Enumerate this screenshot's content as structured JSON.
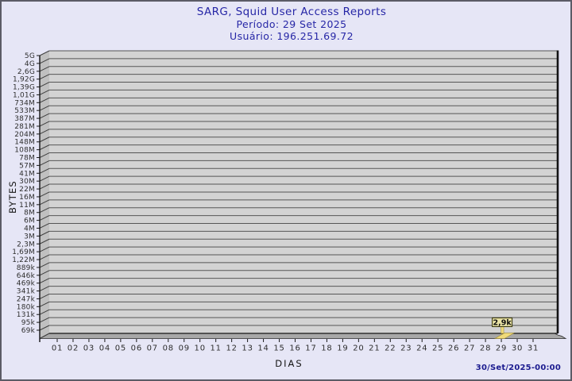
{
  "header": {
    "title": "SARG, Squid User Access Reports",
    "period": "Período: 29 Set 2025",
    "user": "Usuário: 196.251.69.72"
  },
  "footer": {
    "generated_at": "30/Set/2025-00:00"
  },
  "chart_data": {
    "type": "bar",
    "title": "SARG, Squid User Access Reports",
    "subtitle": "Período: 29 Set 2025",
    "xlabel": "DIAS",
    "ylabel": "BYTES",
    "y_scale": "log",
    "y_ticks": [
      "5G",
      "4G",
      "2,6G",
      "1,92G",
      "1,39G",
      "1,01G",
      "734M",
      "533M",
      "387M",
      "281M",
      "204M",
      "148M",
      "108M",
      "78M",
      "57M",
      "41M",
      "30M",
      "22M",
      "16M",
      "11M",
      "8M",
      "6M",
      "4M",
      "3M",
      "2,3M",
      "1,69M",
      "1,22M",
      "889k",
      "646k",
      "469k",
      "341k",
      "247k",
      "180k",
      "131k",
      "95k",
      "69k"
    ],
    "x_ticks": [
      "01",
      "02",
      "03",
      "04",
      "05",
      "06",
      "07",
      "08",
      "09",
      "10",
      "11",
      "12",
      "13",
      "14",
      "15",
      "16",
      "17",
      "18",
      "19",
      "20",
      "21",
      "22",
      "23",
      "24",
      "25",
      "26",
      "27",
      "28",
      "29",
      "30",
      "31"
    ],
    "bars": [
      {
        "x": "29",
        "label": "2,9k",
        "value_bytes": 2900
      }
    ],
    "grid": true,
    "legend": "none"
  },
  "colors": {
    "background": "#e6e6f6",
    "title_text": "#2626a6",
    "plot_bg": "#d3d3d3",
    "wall": "#c0c0c0",
    "floor": "#a8a8a8",
    "grid_line": "#565656",
    "axis_line": "#141414",
    "tick_text": "#2e2e2e",
    "bar_fill": "#f0da7a",
    "bar_stroke": "#a08c30",
    "value_box_bg": "#e9e3a5",
    "value_box_border": "#3c3c14",
    "footer_text": "#1b1b8f"
  }
}
